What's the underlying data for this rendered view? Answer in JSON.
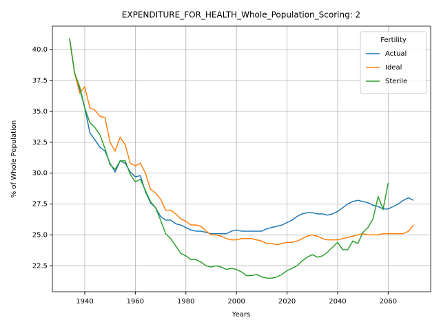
{
  "chart_data": {
    "type": "line",
    "title": "EXPENDITURE_FOR_HEALTH_Whole_Population_Scoring: 2",
    "xlabel": "Years",
    "ylabel": "% of Whole Population",
    "x": [
      1934,
      1936,
      1938,
      1940,
      1942,
      1944,
      1946,
      1948,
      1950,
      1952,
      1954,
      1956,
      1958,
      1960,
      1962,
      1964,
      1966,
      1968,
      1970,
      1972,
      1974,
      1976,
      1978,
      1980,
      1982,
      1984,
      1986,
      1988,
      1990,
      1992,
      1994,
      1996,
      1998,
      2000,
      2002,
      2004,
      2006,
      2008,
      2010,
      2012,
      2014,
      2016,
      2018,
      2020,
      2022,
      2024,
      2026,
      2028,
      2030,
      2032,
      2034,
      2036,
      2038,
      2040,
      2042,
      2044,
      2046,
      2048,
      2050,
      2052,
      2054,
      2056,
      2058,
      2060,
      2062,
      2064,
      2066,
      2068,
      2070
    ],
    "series": [
      {
        "name": "Actual",
        "color": "#1f77b4",
        "values": [
          40.9,
          38.1,
          36.8,
          35.3,
          33.3,
          32.7,
          32.1,
          31.8,
          30.8,
          30.1,
          31.0,
          30.8,
          30.1,
          29.7,
          29.8,
          28.5,
          27.6,
          27.2,
          26.5,
          26.2,
          26.2,
          25.9,
          25.8,
          25.6,
          25.4,
          25.3,
          25.3,
          25.2,
          25.1,
          25.1,
          25.1,
          25.1,
          25.3,
          25.4,
          25.3,
          25.3,
          25.3,
          25.3,
          25.3,
          25.5,
          25.6,
          25.7,
          25.8,
          26.0,
          26.2,
          26.5,
          26.7,
          26.8,
          26.8,
          26.7,
          26.7,
          26.6,
          26.7,
          26.9,
          27.2,
          27.5,
          27.7,
          27.8,
          27.7,
          27.6,
          27.4,
          27.3,
          27.1,
          27.1,
          27.3,
          27.5,
          27.8,
          28.0,
          27.8
        ]
      },
      {
        "name": "Ideal",
        "color": "#ff7f0e",
        "values": [
          40.9,
          38.1,
          36.5,
          37.0,
          35.3,
          35.1,
          34.6,
          34.5,
          32.5,
          31.8,
          32.9,
          32.3,
          30.8,
          30.6,
          30.8,
          30.0,
          28.7,
          28.4,
          27.9,
          27.0,
          27.0,
          26.7,
          26.3,
          26.1,
          25.8,
          25.8,
          25.7,
          25.3,
          25.0,
          25.0,
          24.9,
          24.7,
          24.6,
          24.6,
          24.7,
          24.7,
          24.7,
          24.6,
          24.5,
          24.3,
          24.3,
          24.2,
          24.3,
          24.4,
          24.4,
          24.5,
          24.7,
          24.9,
          25.0,
          24.9,
          24.7,
          24.6,
          24.6,
          24.6,
          24.7,
          24.8,
          24.9,
          25.0,
          25.1,
          25.0,
          25.0,
          25.0,
          25.1,
          25.1,
          25.1,
          25.1,
          25.1,
          25.3,
          25.8
        ]
      },
      {
        "name": "Sterile",
        "color": "#2ca02c",
        "values": [
          40.9,
          38.1,
          37.0,
          35.3,
          34.1,
          33.7,
          33.1,
          32.0,
          30.7,
          30.3,
          31.0,
          31.0,
          29.9,
          29.3,
          29.5,
          28.6,
          27.7,
          27.2,
          26.2,
          25.1,
          24.7,
          24.1,
          23.5,
          23.3,
          23.0,
          23.0,
          22.8,
          22.5,
          22.4,
          22.5,
          22.4,
          22.2,
          22.3,
          22.2,
          22.0,
          21.7,
          21.7,
          21.8,
          21.6,
          21.5,
          21.5,
          21.6,
          21.8,
          22.1,
          22.3,
          22.5,
          22.9,
          23.2,
          23.4,
          23.2,
          23.3,
          23.6,
          24.0,
          24.4,
          23.8,
          23.8,
          24.5,
          24.3,
          25.2,
          25.6,
          26.3,
          28.1,
          27.1,
          29.2,
          null,
          null,
          null,
          null,
          null
        ]
      }
    ],
    "xlim": [
      1927.2,
      2076.8
    ],
    "xticks": [
      1940,
      1960,
      1980,
      2000,
      2020,
      2040,
      2060
    ],
    "ylim": [
      20.4,
      41.9
    ],
    "yticks": [
      22.5,
      {
        "value": 25,
        "label": "25.0"
      },
      27.5,
      {
        "value": 30,
        "label": "30.0"
      },
      32.5,
      {
        "value": 35,
        "label": "35.0"
      },
      37.5,
      {
        "value": 40,
        "label": "40.0"
      }
    ],
    "grid": true,
    "legend_title": "Fertility",
    "legend_position": "upper right"
  }
}
